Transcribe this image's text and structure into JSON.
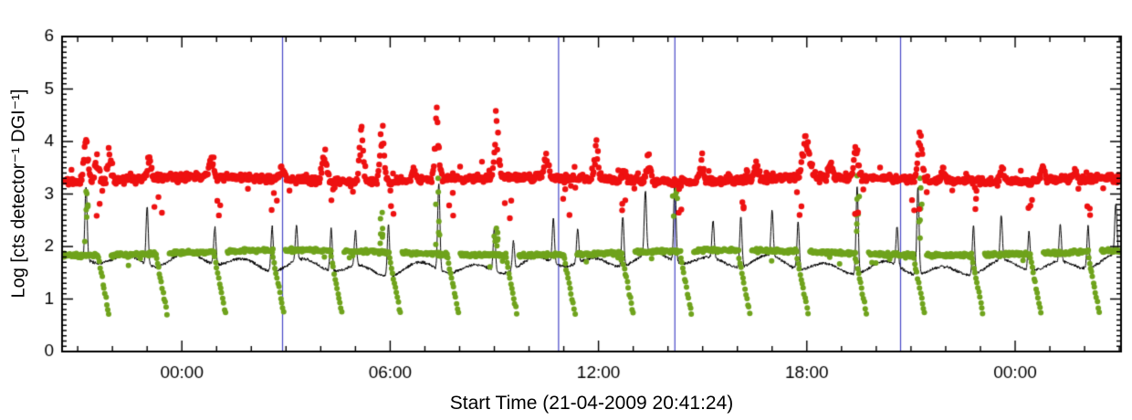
{
  "chart_data": {
    "type": "mixed",
    "title": "",
    "xlabel": "Start Time (21-04-2009 20:41:24)",
    "ylabel": "Log [cts detector⁻¹ DGI⁻¹]",
    "x_unit": "hours relative to 00:00 on 22-04-2009",
    "xlim": [
      -3.45,
      27.05
    ],
    "ylim": [
      0,
      6
    ],
    "grid": false,
    "legend": "none",
    "y_major_ticks": [
      0,
      1,
      2,
      3,
      4,
      5,
      6
    ],
    "y_minor_step": 0.1,
    "x_major_ticks": [
      {
        "hour": 0,
        "label": "00:00"
      },
      {
        "hour": 6,
        "label": "06:00"
      },
      {
        "hour": 12,
        "label": "12:00"
      },
      {
        "hour": 18,
        "label": "18:00"
      },
      {
        "hour": 24,
        "label": "00:00"
      }
    ],
    "x_minor_step": 1,
    "vlines": {
      "color": "#4747c7",
      "hours": [
        2.9,
        10.85,
        14.2,
        20.7
      ]
    },
    "rng_seed": 42,
    "series": [
      {
        "name": "red-high-rate-channel",
        "type": "scatter",
        "color": "#ee1111",
        "marker_radius": 3.2,
        "baseline": 3.28,
        "noise": 0.09,
        "sample_step_hours": 0.021,
        "spike_width_hours": 0.08,
        "spikes": [
          [
            -2.76,
            4.35
          ],
          [
            -2.45,
            3.9
          ],
          [
            -2.1,
            4.0
          ],
          [
            -0.92,
            3.75
          ],
          [
            0.84,
            3.8
          ],
          [
            2.89,
            3.65
          ],
          [
            4.12,
            4.05
          ],
          [
            5.17,
            4.45
          ],
          [
            5.77,
            4.7
          ],
          [
            6.69,
            3.6
          ],
          [
            7.35,
            4.75
          ],
          [
            9.06,
            4.55
          ],
          [
            10.5,
            3.85
          ],
          [
            11.94,
            4.05
          ],
          [
            12.73,
            3.6
          ],
          [
            13.44,
            3.9
          ],
          [
            14.96,
            3.9
          ],
          [
            15.75,
            3.5
          ],
          [
            16.54,
            3.75
          ],
          [
            17.98,
            4.35,
            0.14
          ],
          [
            18.69,
            3.7
          ],
          [
            19.42,
            4.2
          ],
          [
            21.26,
            4.45
          ],
          [
            21.92,
            3.6
          ],
          [
            23.62,
            3.65
          ],
          [
            24.8,
            3.7
          ],
          [
            25.72,
            3.55
          ]
        ]
      },
      {
        "name": "green-low-rate-channel",
        "type": "scatter",
        "color": "#6fa31c",
        "marker_radius": 3.0,
        "baseline": 1.88,
        "noise": 0.045,
        "sample_step_hours": 0.019,
        "dips": {
          "start": -2.41,
          "period": 1.678,
          "count": 18,
          "top": 1.78,
          "bottom": 0.73,
          "duration": 0.33
        },
        "spikes": [
          [
            -2.76,
            3.05
          ],
          [
            5.77,
            2.65
          ],
          [
            7.38,
            3.3
          ],
          [
            9.06,
            2.35
          ],
          [
            14.2,
            3.2
          ],
          [
            19.45,
            3.35
          ],
          [
            21.26,
            3.3
          ]
        ]
      },
      {
        "name": "black-lightcurve",
        "type": "line",
        "color": "#000000",
        "line_width": 1,
        "baseline": 1.66,
        "noise": 0.035,
        "sample_step_hours": 0.008,
        "spike_width_hours": 0.045,
        "spikes": [
          [
            -2.76,
            3.05
          ],
          [
            -1.0,
            2.75
          ],
          [
            0.95,
            2.35
          ],
          [
            2.6,
            2.5
          ],
          [
            3.3,
            2.3
          ],
          [
            4.3,
            2.45
          ],
          [
            5.0,
            2.3
          ],
          [
            5.95,
            2.65
          ],
          [
            7.4,
            3.3
          ],
          [
            9.0,
            2.45
          ],
          [
            9.55,
            2.2
          ],
          [
            10.7,
            2.5
          ],
          [
            11.4,
            2.3
          ],
          [
            12.7,
            2.6
          ],
          [
            13.35,
            2.85
          ],
          [
            14.2,
            3.25
          ],
          [
            15.3,
            2.35
          ],
          [
            16.1,
            2.6
          ],
          [
            17.0,
            2.5
          ],
          [
            17.75,
            2.55
          ],
          [
            19.45,
            3.3
          ],
          [
            20.6,
            2.4
          ],
          [
            21.2,
            3.3
          ],
          [
            22.8,
            2.6
          ],
          [
            23.6,
            2.5
          ],
          [
            24.4,
            2.4
          ],
          [
            25.3,
            2.35
          ],
          [
            26.1,
            2.45
          ],
          [
            26.9,
            2.6
          ]
        ]
      }
    ]
  }
}
